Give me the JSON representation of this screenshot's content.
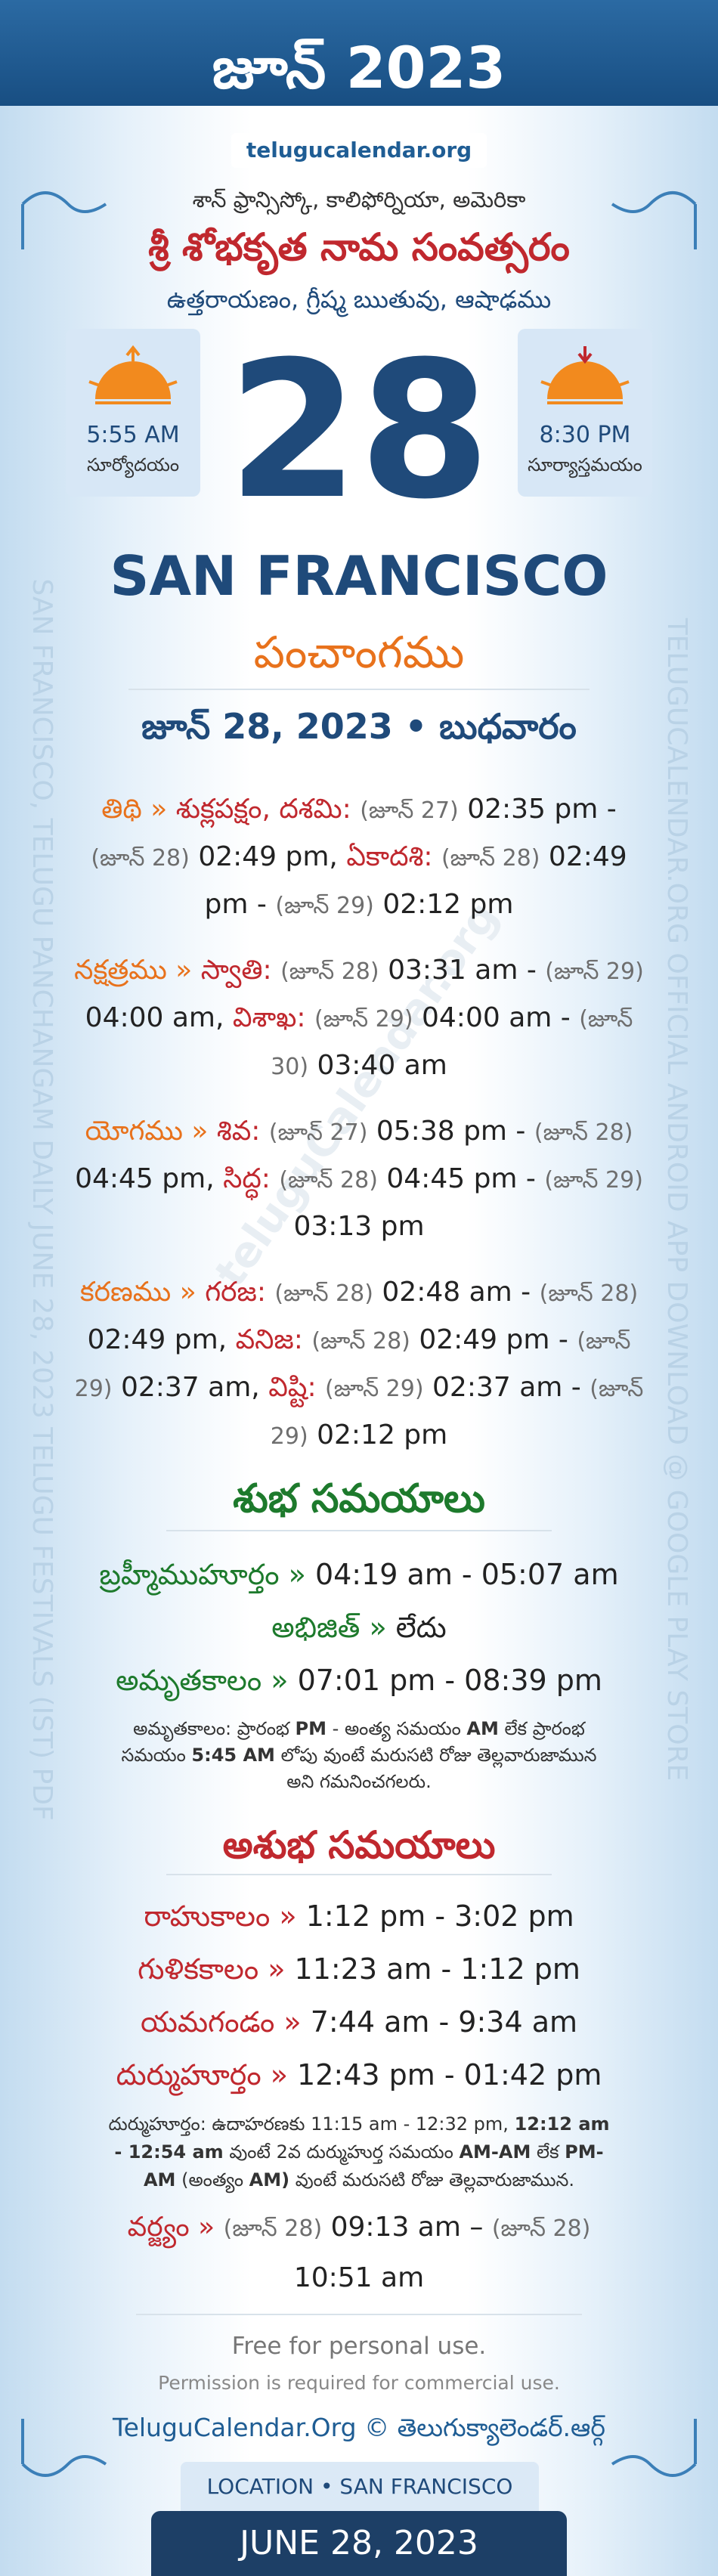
{
  "header": {
    "title": "జూన్ 2023",
    "site": "telugucalendar.org"
  },
  "location_line": "శాన్ ఫ్రాన్సిస్కో, కాలిఫోర్నియా, అమెరికా",
  "year_name": "శ్రీ శోభకృత నామ సంవత్సరం",
  "season": "ఉత్తరాయణం, గ్రీష్మ ఋతువు, ఆషాఢము",
  "sunrise": {
    "time": "5:55 AM",
    "label": "సూర్యోదయం"
  },
  "sunset": {
    "time": "8:30 PM",
    "label": "సూర్యాస్తమయం"
  },
  "day": 28,
  "city": "SAN FRANCISCO",
  "panchangam_title": "పంచాంగము",
  "date_line": "జూన్ 28, 2023 • బుధవారం",
  "panchangam": [
    [
      "తిథి",
      "»",
      "శుక్లపక్షం, దశమి:",
      "(జూన్ 27)",
      "02:35 pm -",
      "(జూన్ 28)",
      "02:49 pm,",
      "ఏకాదశి:",
      "(జూన్ 28)",
      "02:49 pm -",
      "(జూన్ 29)",
      "02:12 pm"
    ],
    [
      "నక్షత్రము",
      "»",
      "స్వాతి:",
      "(జూన్ 28)",
      "03:31 am -",
      "(జూన్ 29)",
      "04:00 am,",
      "విశాఖ:",
      "(జూన్ 29)",
      "04:00 am -",
      "(జూన్ 30)",
      "03:40 am"
    ],
    [
      "యోగము",
      "»",
      "శివ:",
      "(జూన్ 27)",
      "05:38 pm -",
      "(జూన్ 28)",
      "04:45 pm,",
      "సిద్ధ:",
      "(జూన్ 28)",
      "04:45 pm -",
      "(జూన్ 29)",
      "03:13 pm"
    ],
    [
      "కరణము",
      "»",
      "గరజ:",
      "(జూన్ 28)",
      "02:48 am -",
      "(జూన్ 28)",
      "02:49 pm,",
      "వనిజ:",
      "(జూన్ 28)",
      "02:49 pm -",
      "(జూన్ 29)",
      "02:37 am,",
      "విష్టి:",
      "(జూన్ 29)",
      "02:37 am -",
      "(జూన్ 29)",
      "02:12 pm"
    ]
  ],
  "shubha": {
    "title": "శుభ సమయాలు",
    "rows": [
      [
        "బ్రహ్మీముహూర్తం",
        "»",
        "04:19 am - 05:07 am"
      ],
      [
        "అభిజిత్",
        "»",
        "లేదు"
      ],
      [
        "అమృతకాలం",
        "»",
        "07:01 pm - 08:39 pm"
      ]
    ],
    "note": [
      "అమృతకాలం: ప్రారంభ",
      "PM",
      "- అంత్య సమయం",
      "AM",
      "లేక ప్రారంభ సమయం",
      "5:45 AM",
      "లోపు వుంటే మరుసటి రోజు తెల్లవారుజామున అని గమనించగలరు."
    ]
  },
  "ashubha": {
    "title": "అశుభ సమయాలు",
    "rows": [
      [
        "రాహుకాలం",
        "»",
        "1:12 pm - 3:02 pm"
      ],
      [
        "గుళికకాలం",
        "»",
        "11:23 am - 1:12 pm"
      ],
      [
        "యమగండం",
        "»",
        "7:44 am - 9:34 am"
      ],
      [
        "దుర్ముహూర్తం",
        "»",
        "12:43 pm - 01:42 pm"
      ]
    ],
    "note": [
      "దుర్ముహూర్తం: ఉదాహరణకు 11:15 am - 12:32 pm,",
      "12:12 am - 12:54 am",
      "వుంటే 2వ దుర్ముహుర్త సమయం",
      "AM-AM",
      "లేక",
      "PM-AM",
      "(అంత్యం",
      "AM)",
      "వుంటే మరుసటి రోజు తెల్లవారుజామున."
    ],
    "varjyam": [
      "వర్జ్యం",
      "»",
      "(జూన్ 28)",
      "09:13 am –",
      "(జూన్ 28)",
      "10:51 am"
    ]
  },
  "footer": {
    "free": "Free for personal use.",
    "permission": "Permission is required for commercial use.",
    "credit": "TeluguCalendar.Org © తెలుగుక్యాలెండర్.ఆర్గ్",
    "location_badge": "LOCATION • SAN FRANCISCO",
    "date_badge": "JUNE 28, 2023"
  },
  "side_left": "SAN FRANCISCO, TELUGU PANCHANGAM DAILY JUNE 28, 2023 TELUGU FESTIVALS (IST) PDF",
  "side_right": "TELUGUCALENDAR.ORG OFFICIAL ANDROID APP DOWNLOAD @ GOOGLE PLAY STORE",
  "watermark": "teluguCalendar.org"
}
